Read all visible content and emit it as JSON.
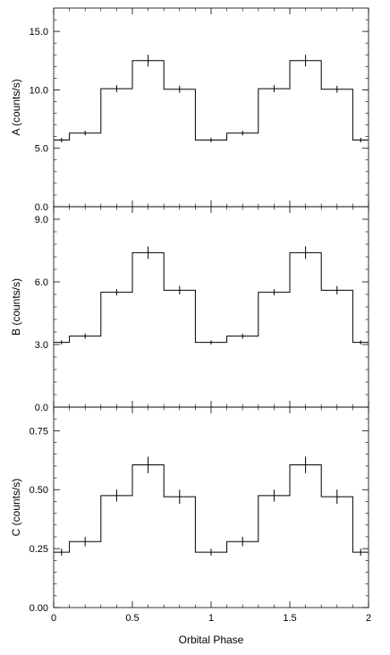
{
  "chart_data": [
    {
      "type": "line",
      "subtype": "step-histogram-with-errorbars",
      "ylabel": "A (counts/s)",
      "xlim": [
        0,
        2
      ],
      "ylim": [
        0,
        17
      ],
      "yticks": [
        "0.0",
        "5.0",
        "10.0",
        "15.0"
      ],
      "series": [
        {
          "x": [
            0.05,
            0.2,
            0.4,
            0.6,
            0.8,
            1.0,
            1.2,
            1.4,
            1.6,
            1.8,
            1.95
          ],
          "y": [
            5.7,
            6.3,
            10.1,
            12.5,
            10.05,
            5.7,
            6.3,
            10.1,
            12.5,
            10.05,
            5.7
          ],
          "yerr": [
            0.2,
            0.2,
            0.3,
            0.5,
            0.3,
            0.2,
            0.2,
            0.3,
            0.5,
            0.3,
            0.2
          ]
        }
      ]
    },
    {
      "type": "line",
      "subtype": "step-histogram-with-errorbars",
      "ylabel": "B (counts/s)",
      "xlim": [
        0,
        2
      ],
      "ylim": [
        0,
        9.6
      ],
      "yticks": [
        "0.0",
        "3.0",
        "6.0",
        "9.0"
      ],
      "series": [
        {
          "x": [
            0.05,
            0.2,
            0.4,
            0.6,
            0.8,
            1.0,
            1.2,
            1.4,
            1.6,
            1.8,
            1.95
          ],
          "y": [
            3.1,
            3.4,
            5.5,
            7.4,
            5.6,
            3.1,
            3.4,
            5.5,
            7.4,
            5.6,
            3.1
          ],
          "yerr": [
            0.1,
            0.12,
            0.15,
            0.3,
            0.2,
            0.1,
            0.12,
            0.15,
            0.3,
            0.2,
            0.1
          ]
        }
      ]
    },
    {
      "type": "line",
      "subtype": "step-histogram-with-errorbars",
      "ylabel": "C (counts/s)",
      "xlabel": "Orbital Phase",
      "xlim": [
        0,
        2
      ],
      "ylim": [
        0,
        0.85
      ],
      "xticks": [
        "0",
        "0.5",
        "1",
        "1.5",
        "2"
      ],
      "yticks": [
        "0.00",
        "0.25",
        "0.50",
        "0.75"
      ],
      "series": [
        {
          "x": [
            0.05,
            0.2,
            0.4,
            0.6,
            0.8,
            1.0,
            1.2,
            1.4,
            1.6,
            1.8,
            1.95
          ],
          "y": [
            0.235,
            0.28,
            0.475,
            0.605,
            0.47,
            0.235,
            0.28,
            0.475,
            0.605,
            0.47,
            0.235
          ],
          "yerr": [
            0.015,
            0.02,
            0.025,
            0.035,
            0.03,
            0.015,
            0.02,
            0.025,
            0.035,
            0.03,
            0.015
          ]
        }
      ]
    }
  ]
}
